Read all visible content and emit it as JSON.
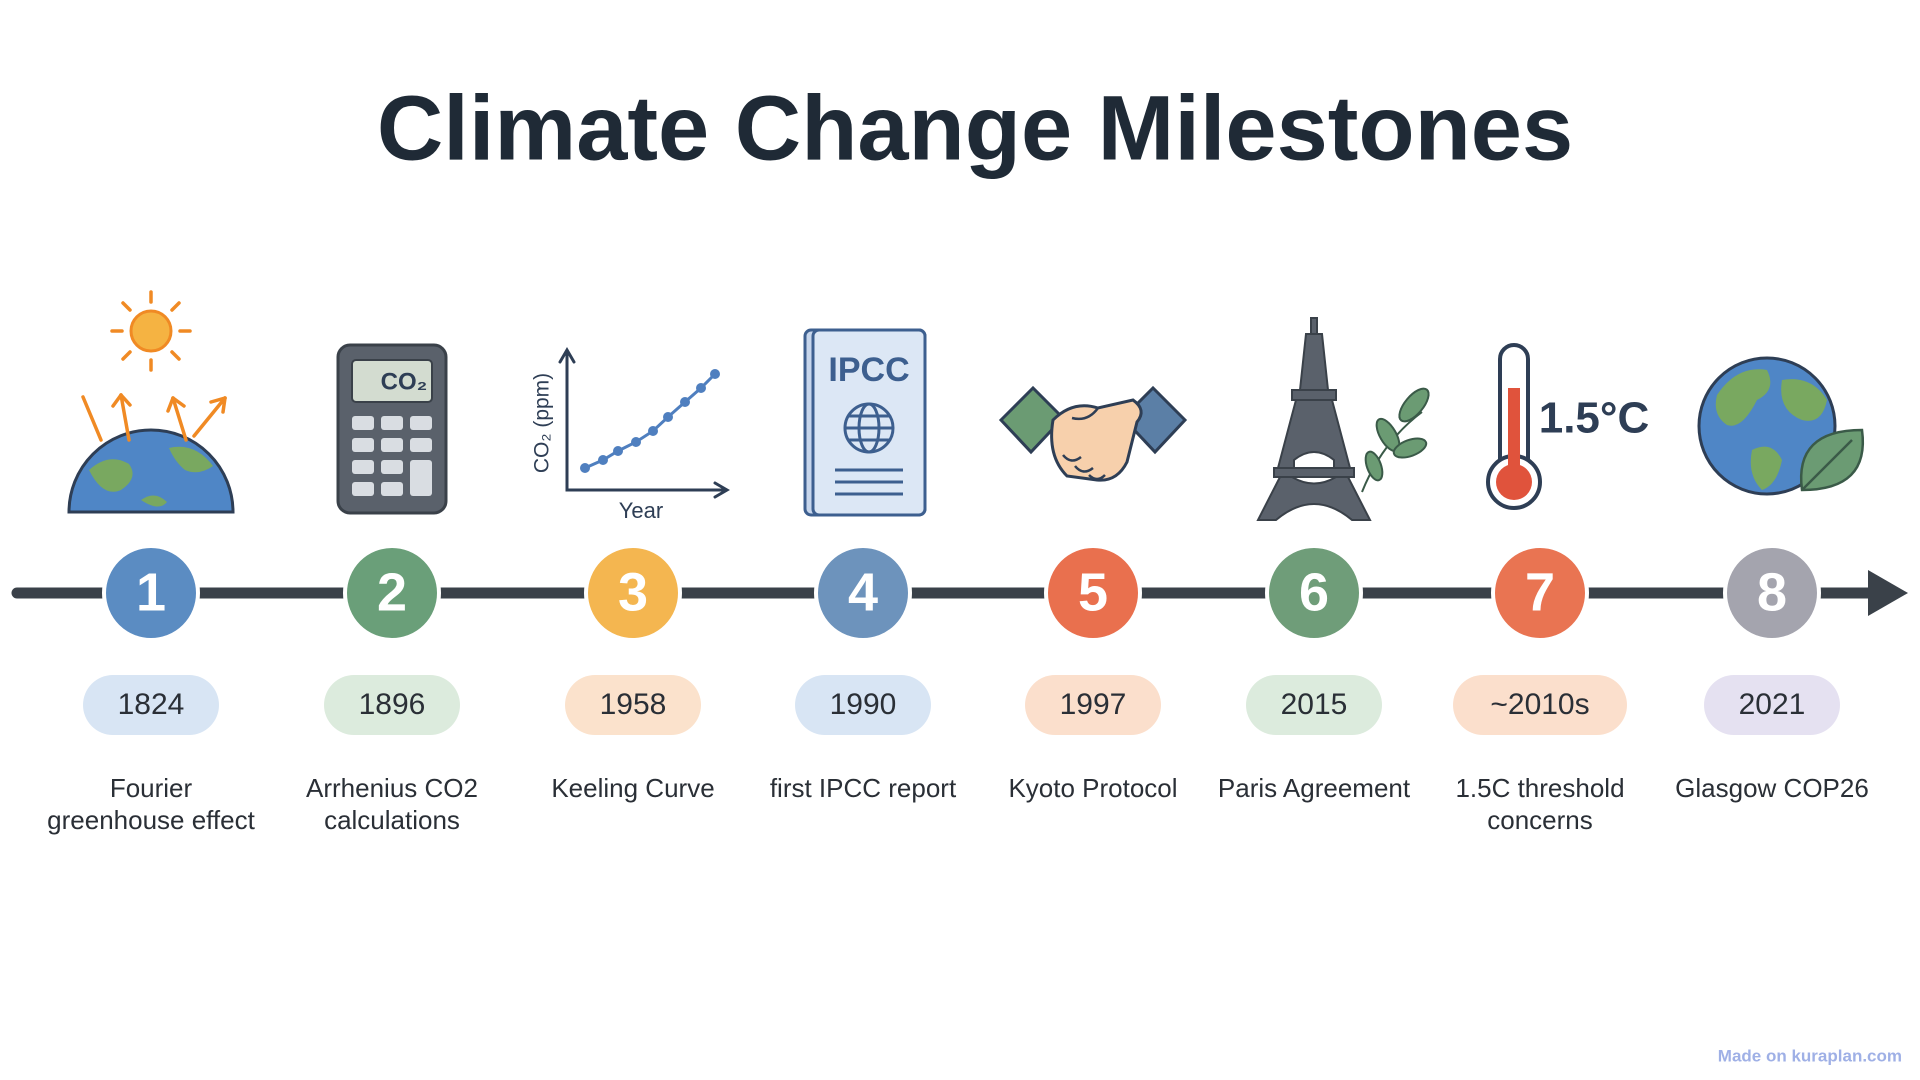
{
  "header": {
    "title": "Climate Change Milestones"
  },
  "milestones": [
    {
      "number": "1",
      "year": "1824",
      "label": [
        "Fourier",
        "greenhouse effect"
      ],
      "color": "#5b8cc2",
      "pill": "#d8e5f4"
    },
    {
      "number": "2",
      "year": "1896",
      "label": [
        "Arrhenius CO2",
        "calculations"
      ],
      "color": "#6a9f79",
      "pill": "#dcebdd"
    },
    {
      "number": "3",
      "year": "1958",
      "label": [
        "Keeling Curve"
      ],
      "color": "#f4b650",
      "pill": "#fbe2cc"
    },
    {
      "number": "4",
      "year": "1990",
      "label": [
        "first IPCC report"
      ],
      "color": "#6d93bc",
      "pill": "#d8e5f4"
    },
    {
      "number": "5",
      "year": "1997",
      "label": [
        "Kyoto Protocol"
      ],
      "color": "#e9704e",
      "pill": "#fbdfcc"
    },
    {
      "number": "6",
      "year": "2015",
      "label": [
        "Paris Agreement"
      ],
      "color": "#6f9d79",
      "pill": "#dcebdd"
    },
    {
      "number": "7",
      "year": "~2010s",
      "label": [
        "1.5C threshold",
        "concerns"
      ],
      "color": "#e97452",
      "pill": "#fbdfcc"
    },
    {
      "number": "8",
      "year": "2021",
      "label": [
        "Glasgow COP26"
      ],
      "color": "#a4a4ae",
      "pill": "#e5e1f1"
    }
  ],
  "icon_texts": {
    "calculator": "CO₂",
    "chart_y": "CO₂ (ppm)",
    "chart_x": "Year",
    "report": "IPCC",
    "thermometer": "1.5°C"
  },
  "footer": {
    "watermark": "Made on kuraplan.com"
  }
}
